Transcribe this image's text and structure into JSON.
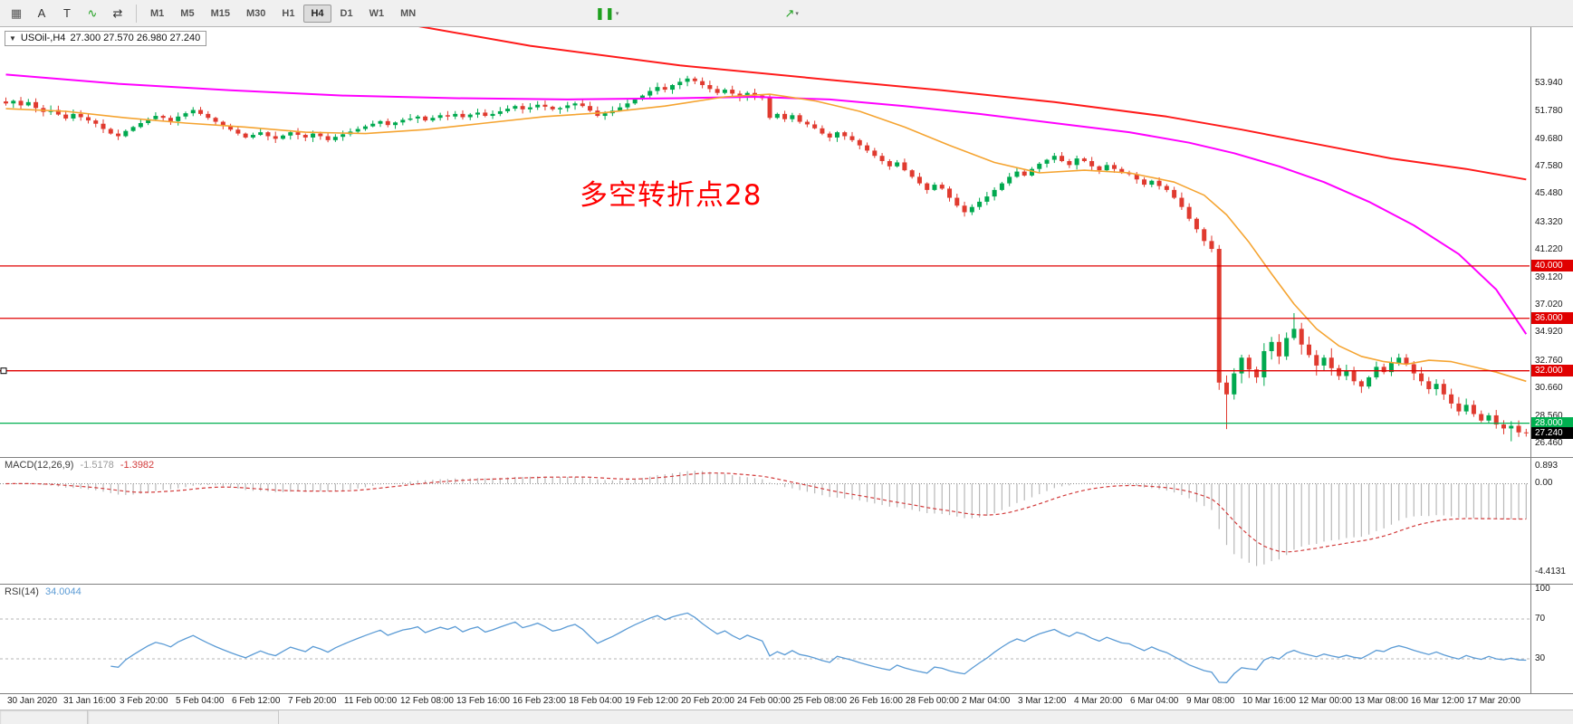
{
  "toolbar": {
    "left_icons": [
      {
        "name": "grid-icon",
        "glyph": "▦",
        "color": "#555555"
      },
      {
        "name": "text-tool-icon",
        "glyph": "A",
        "color": "#333333"
      },
      {
        "name": "label-tool-icon",
        "glyph": "T",
        "color": "#333333"
      },
      {
        "name": "zigzag-tool-icon",
        "glyph": "∿",
        "color": "#1fa01f"
      },
      {
        "name": "cycle-arrows-icon",
        "glyph": "⇄",
        "color": "#333333"
      }
    ],
    "timeframes": [
      {
        "label": "M1",
        "active": false
      },
      {
        "label": "M5",
        "active": false
      },
      {
        "label": "M15",
        "active": false
      },
      {
        "label": "M30",
        "active": false
      },
      {
        "label": "H1",
        "active": false
      },
      {
        "label": "H4",
        "active": true
      },
      {
        "label": "D1",
        "active": false
      },
      {
        "label": "W1",
        "active": false
      },
      {
        "label": "MN",
        "active": false
      }
    ],
    "right_icons": [
      {
        "name": "candlestick-chart-icon",
        "glyph": "❚❚",
        "color": "#1fa01f"
      },
      {
        "name": "arrow-up-icon",
        "glyph": "↗",
        "color": "#1fa01f"
      }
    ]
  },
  "chart": {
    "symbol_label": "USOil-,H4",
    "ohlc": "27.300 27.570 26.980 27.240",
    "dropdown_icon": "▼",
    "annotation": {
      "text": "多空转折点28",
      "color": "#ff0000"
    },
    "hlines": [
      {
        "value": 40.0,
        "label": "40.000",
        "color": "#e00000",
        "handle": false
      },
      {
        "value": 36.0,
        "label": "36.000",
        "color": "#e00000",
        "handle": false
      },
      {
        "value": 32.0,
        "label": "32.000",
        "color": "#e00000",
        "handle": true
      },
      {
        "value": 28.0,
        "label": "28.000",
        "color": "#00b050",
        "handle": false
      }
    ],
    "current_price": {
      "value": 27.24,
      "label": "27.240",
      "bg": "#000000"
    },
    "price_ticks": [
      "53.940",
      "51.780",
      "49.680",
      "47.580",
      "45.480",
      "43.320",
      "41.220",
      "39.120",
      "37.020",
      "34.920",
      "32.760",
      "30.660",
      "28.560",
      "26.460"
    ],
    "colors": {
      "up": "#00a94f",
      "down": "#e03a2f",
      "ma_fast": "#f5a431",
      "ma_mid": "#ff00ff",
      "ma_slow": "#ff1a1a"
    }
  },
  "chart_data": {
    "type": "candlestick",
    "symbol": "USOil-",
    "timeframe": "H4",
    "title": "USOil-,H4 27.300 27.570 26.980 27.240",
    "price_range": [
      25.42,
      58.22
    ],
    "closes": [
      52.4,
      52.6,
      52.25,
      52.5,
      52.05,
      51.75,
      51.9,
      51.55,
      51.25,
      51.6,
      51.35,
      51.1,
      50.85,
      50.45,
      50.1,
      49.9,
      50.3,
      50.6,
      50.9,
      51.2,
      51.45,
      51.3,
      51.05,
      51.4,
      51.65,
      51.9,
      51.6,
      51.3,
      51.0,
      50.7,
      50.4,
      50.1,
      49.8,
      50.0,
      50.2,
      49.9,
      49.7,
      49.95,
      50.2,
      50.0,
      49.8,
      50.1,
      49.9,
      49.6,
      49.85,
      50.05,
      50.25,
      50.45,
      50.65,
      50.85,
      51.05,
      50.75,
      50.95,
      51.15,
      51.25,
      51.4,
      51.1,
      51.3,
      51.5,
      51.4,
      51.6,
      51.35,
      51.55,
      51.7,
      51.45,
      51.6,
      51.8,
      52.0,
      52.2,
      51.95,
      52.1,
      52.3,
      52.15,
      51.95,
      52.05,
      52.25,
      52.4,
      52.2,
      51.85,
      51.45,
      51.65,
      51.85,
      52.1,
      52.4,
      52.7,
      53.0,
      53.35,
      53.65,
      53.45,
      53.8,
      54.05,
      54.3,
      54.1,
      53.8,
      53.5,
      53.2,
      53.45,
      53.15,
      52.9,
      53.2,
      53.0,
      52.8,
      51.3,
      51.6,
      51.2,
      51.5,
      51.0,
      50.8,
      50.5,
      50.1,
      49.8,
      50.2,
      49.9,
      49.6,
      49.2,
      48.8,
      48.4,
      48.0,
      47.6,
      47.9,
      47.3,
      46.8,
      46.3,
      45.8,
      46.2,
      45.9,
      45.2,
      44.6,
      44.1,
      44.5,
      44.9,
      45.3,
      45.8,
      46.3,
      46.8,
      47.2,
      46.9,
      47.4,
      47.8,
      48.1,
      48.4,
      48.0,
      47.7,
      48.2,
      48.0,
      47.6,
      47.3,
      47.7,
      47.4,
      47.1,
      47.0,
      46.6,
      46.2,
      46.5,
      46.1,
      45.8,
      45.2,
      44.5,
      43.6,
      42.8,
      41.9,
      41.3,
      31.1,
      30.2,
      31.8,
      33.0,
      32.1,
      31.5,
      33.5,
      34.2,
      33.1,
      34.5,
      35.2,
      34.0,
      33.2,
      32.4,
      33.0,
      32.2,
      31.6,
      32.0,
      31.2,
      30.8,
      31.5,
      32.3,
      31.9,
      32.6,
      33.0,
      32.5,
      31.8,
      31.2,
      30.6,
      31.0,
      30.2,
      29.5,
      28.9,
      29.4,
      28.7,
      28.2,
      28.6,
      27.9,
      27.6,
      27.8,
      27.3,
      27.24
    ],
    "bar_overrides": {
      "163": {
        "low": 27.55
      },
      "172": {
        "high": 36.4
      },
      "201": {
        "low": 26.62
      },
      "203": {
        "open": 27.3,
        "high": 27.57,
        "low": 26.98,
        "close": 27.24
      }
    },
    "ma_fast_points": [
      [
        0,
        52.0
      ],
      [
        8,
        51.8
      ],
      [
        16,
        51.3
      ],
      [
        24,
        50.9
      ],
      [
        32,
        50.6
      ],
      [
        40,
        50.2
      ],
      [
        48,
        50.1
      ],
      [
        56,
        50.4
      ],
      [
        64,
        50.9
      ],
      [
        72,
        51.4
      ],
      [
        80,
        51.7
      ],
      [
        88,
        52.2
      ],
      [
        96,
        52.9
      ],
      [
        102,
        53.1
      ],
      [
        108,
        52.6
      ],
      [
        114,
        51.8
      ],
      [
        120,
        50.6
      ],
      [
        126,
        49.2
      ],
      [
        132,
        47.9
      ],
      [
        138,
        47.1
      ],
      [
        144,
        47.3
      ],
      [
        150,
        47.1
      ],
      [
        156,
        46.4
      ],
      [
        160,
        45.4
      ],
      [
        163,
        43.9
      ],
      [
        166,
        41.8
      ],
      [
        169,
        39.4
      ],
      [
        172,
        37.1
      ],
      [
        175,
        35.2
      ],
      [
        178,
        33.9
      ],
      [
        181,
        33.1
      ],
      [
        184,
        32.7
      ],
      [
        187,
        32.5
      ],
      [
        190,
        32.8
      ],
      [
        193,
        32.7
      ],
      [
        196,
        32.3
      ],
      [
        199,
        31.9
      ],
      [
        203,
        31.2
      ]
    ],
    "ma_mid_points": [
      [
        0,
        54.6
      ],
      [
        15,
        53.9
      ],
      [
        30,
        53.4
      ],
      [
        45,
        53.0
      ],
      [
        60,
        52.8
      ],
      [
        75,
        52.7
      ],
      [
        90,
        52.8
      ],
      [
        100,
        52.9
      ],
      [
        110,
        52.7
      ],
      [
        120,
        52.2
      ],
      [
        130,
        51.6
      ],
      [
        140,
        50.9
      ],
      [
        150,
        50.2
      ],
      [
        158,
        49.4
      ],
      [
        164,
        48.6
      ],
      [
        170,
        47.6
      ],
      [
        176,
        46.4
      ],
      [
        182,
        44.9
      ],
      [
        188,
        43.1
      ],
      [
        194,
        40.9
      ],
      [
        199,
        38.2
      ],
      [
        203,
        34.8
      ]
    ],
    "ma_slow_points": [
      [
        50,
        58.8
      ],
      [
        70,
        56.8
      ],
      [
        90,
        55.3
      ],
      [
        110,
        54.2
      ],
      [
        125,
        53.4
      ],
      [
        140,
        52.5
      ],
      [
        155,
        51.4
      ],
      [
        165,
        50.4
      ],
      [
        175,
        49.3
      ],
      [
        185,
        48.2
      ],
      [
        195,
        47.4
      ],
      [
        203,
        46.6
      ]
    ],
    "x_labels": [
      "30 Jan 2020",
      "31 Jan 16:00",
      "3 Feb 20:00",
      "5 Feb 04:00",
      "6 Feb 12:00",
      "7 Feb 20:00",
      "11 Feb 00:00",
      "12 Feb 08:00",
      "13 Feb 16:00",
      "16 Feb 23:00",
      "18 Feb 04:00",
      "19 Feb 12:00",
      "20 Feb 20:00",
      "24 Feb 00:00",
      "25 Feb 08:00",
      "26 Feb 16:00",
      "28 Feb 00:00",
      "2 Mar 04:00",
      "3 Mar 12:00",
      "4 Mar 20:00",
      "6 Mar 04:00",
      "9 Mar 08:00",
      "10 Mar 16:00",
      "12 Mar 00:00",
      "13 Mar 08:00",
      "16 Mar 12:00",
      "17 Mar 20:00"
    ]
  },
  "macd": {
    "header": "MACD(12,26,9)",
    "value": "-1.5178",
    "signal": "-1.3982",
    "fast": 12,
    "slow": 26,
    "signal_period": 9,
    "axis_labels": [
      {
        "v": 0.893,
        "t": "0.893"
      },
      {
        "v": 0.0,
        "t": "0.00"
      },
      {
        "v": -4.4131,
        "t": "-4.4131"
      }
    ],
    "colors": {
      "histogram": "#b8b8b8",
      "signal": "#d23b3b"
    }
  },
  "rsi": {
    "header": "RSI(14)",
    "value": "34.0044",
    "period": 14,
    "levels": [
      70,
      30
    ],
    "axis_labels": [
      {
        "v": 100,
        "t": "100"
      },
      {
        "v": 70,
        "t": "70"
      },
      {
        "v": 30,
        "t": "30"
      }
    ],
    "color": "#5b9bd5"
  }
}
